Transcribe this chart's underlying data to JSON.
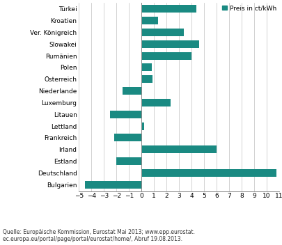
{
  "countries": [
    "Türkei",
    "Kroatien",
    "Ver. Königreich",
    "Slowakei",
    "Rumänien",
    "Polen",
    "Österreich",
    "Niederlande",
    "Luxemburg",
    "Litauen",
    "Lettland",
    "Frankreich",
    "Irland",
    "Estland",
    "Deutschland",
    "Bulgarien"
  ],
  "values": [
    4.4,
    1.3,
    3.4,
    4.6,
    4.0,
    0.8,
    0.9,
    -1.5,
    2.3,
    -2.5,
    0.2,
    -2.2,
    6.0,
    -2.0,
    10.8,
    -4.5
  ],
  "bar_color": "#1a8a82",
  "background_color": "#ffffff",
  "legend_label": "Preis in ct/kWh",
  "xlim": [
    -5,
    11
  ],
  "xticks": [
    -5,
    -4,
    -3,
    -2,
    -1,
    0,
    1,
    2,
    3,
    4,
    5,
    6,
    7,
    8,
    9,
    10,
    11
  ],
  "source_text": "Quelle: Europäische Kommission, Eurostat Mai 2013; www.epp.eurostat.\nec.europa.eu/portal/page/portal/eurostat/home/, Abruf 19.08.2013.",
  "grid_color": "#c0c0c0",
  "bar_height": 0.65,
  "ylabel_fontsize": 6.5,
  "xlabel_fontsize": 6.5,
  "legend_fontsize": 6.5
}
